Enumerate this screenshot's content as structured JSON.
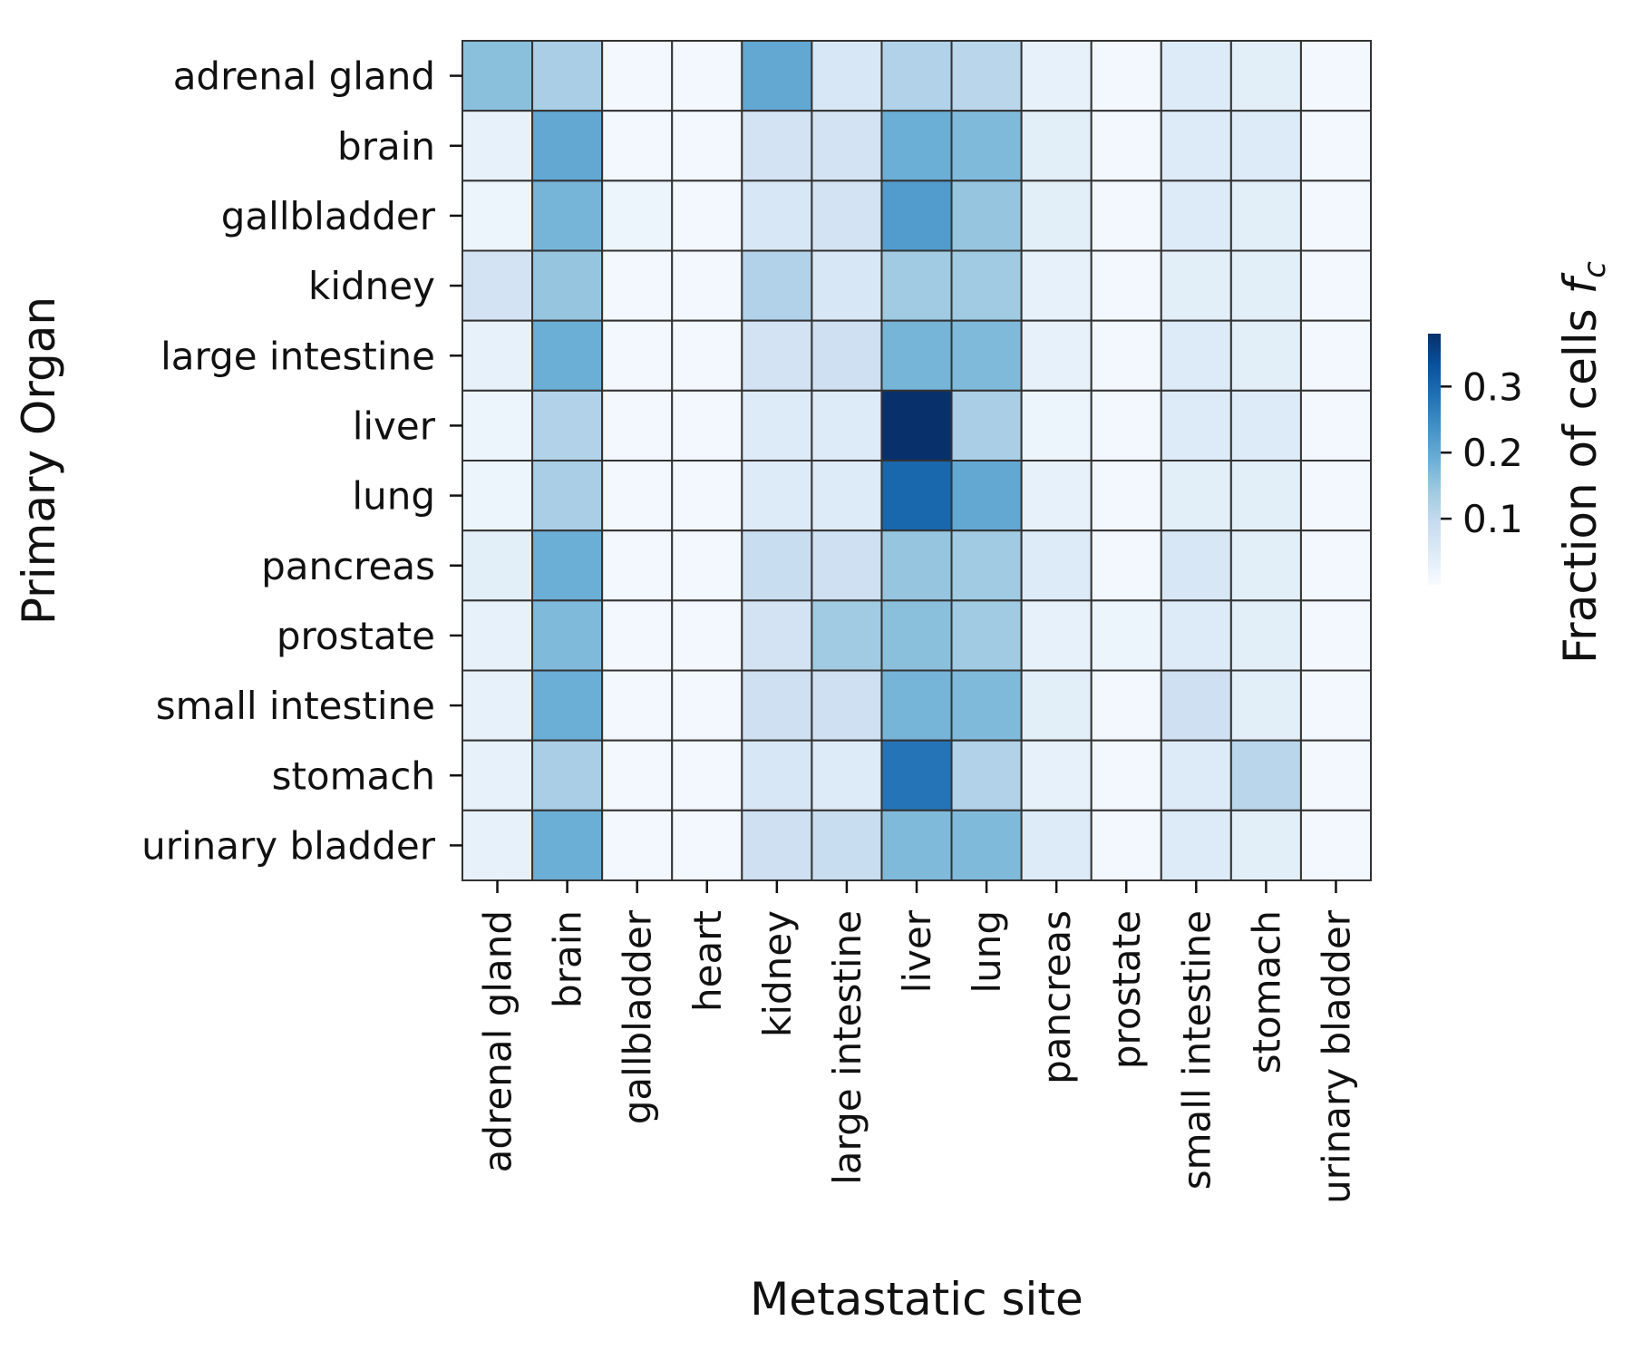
{
  "chart_data": {
    "type": "heatmap",
    "title": "",
    "xlabel": "Metastatic site",
    "ylabel": "Primary Organ",
    "x_categories": [
      "adrenal gland",
      "brain",
      "gallbladder",
      "heart",
      "kidney",
      "large intestine",
      "liver",
      "lung",
      "pancreas",
      "prostate",
      "small intestine",
      "stomach",
      "urinary bladder"
    ],
    "y_categories": [
      "adrenal gland",
      "brain",
      "gallbladder",
      "kidney",
      "large intestine",
      "liver",
      "lung",
      "pancreas",
      "prostate",
      "small intestine",
      "stomach",
      "urinary bladder"
    ],
    "values": [
      [
        0.16,
        0.13,
        0.01,
        0.01,
        0.2,
        0.06,
        0.12,
        0.11,
        0.03,
        0.01,
        0.05,
        0.04,
        0.01
      ],
      [
        0.03,
        0.2,
        0.01,
        0.01,
        0.07,
        0.07,
        0.19,
        0.17,
        0.04,
        0.01,
        0.05,
        0.05,
        0.01
      ],
      [
        0.02,
        0.18,
        0.02,
        0.01,
        0.06,
        0.07,
        0.22,
        0.15,
        0.04,
        0.01,
        0.05,
        0.04,
        0.01
      ],
      [
        0.07,
        0.15,
        0.01,
        0.01,
        0.12,
        0.06,
        0.14,
        0.14,
        0.03,
        0.01,
        0.04,
        0.04,
        0.01
      ],
      [
        0.03,
        0.19,
        0.01,
        0.01,
        0.07,
        0.08,
        0.18,
        0.17,
        0.03,
        0.01,
        0.05,
        0.04,
        0.01
      ],
      [
        0.02,
        0.12,
        0.01,
        0.01,
        0.05,
        0.05,
        0.38,
        0.13,
        0.02,
        0.01,
        0.05,
        0.05,
        0.01
      ],
      [
        0.02,
        0.13,
        0.01,
        0.01,
        0.05,
        0.05,
        0.3,
        0.2,
        0.03,
        0.01,
        0.04,
        0.04,
        0.01
      ],
      [
        0.04,
        0.19,
        0.01,
        0.01,
        0.09,
        0.08,
        0.15,
        0.14,
        0.05,
        0.01,
        0.06,
        0.04,
        0.01
      ],
      [
        0.03,
        0.17,
        0.01,
        0.01,
        0.07,
        0.14,
        0.16,
        0.14,
        0.03,
        0.02,
        0.05,
        0.04,
        0.01
      ],
      [
        0.03,
        0.19,
        0.01,
        0.01,
        0.08,
        0.08,
        0.18,
        0.17,
        0.04,
        0.01,
        0.08,
        0.04,
        0.01
      ],
      [
        0.03,
        0.13,
        0.01,
        0.01,
        0.06,
        0.05,
        0.28,
        0.12,
        0.03,
        0.01,
        0.05,
        0.11,
        0.01
      ],
      [
        0.03,
        0.19,
        0.01,
        0.01,
        0.08,
        0.09,
        0.17,
        0.17,
        0.05,
        0.01,
        0.05,
        0.04,
        0.01
      ]
    ],
    "vmin": 0,
    "vmax": 0.38,
    "colormap": "Blues",
    "colorbar": {
      "label": "Fraction of cells ",
      "label_symbol": "f",
      "label_subscript": "c",
      "ticks": [
        0.1,
        0.2,
        0.3
      ],
      "tick_labels": [
        "0.1",
        "0.2",
        "0.3"
      ],
      "placement": "right"
    },
    "cell_border_color": "#333333",
    "grid": false,
    "legend": "none"
  }
}
